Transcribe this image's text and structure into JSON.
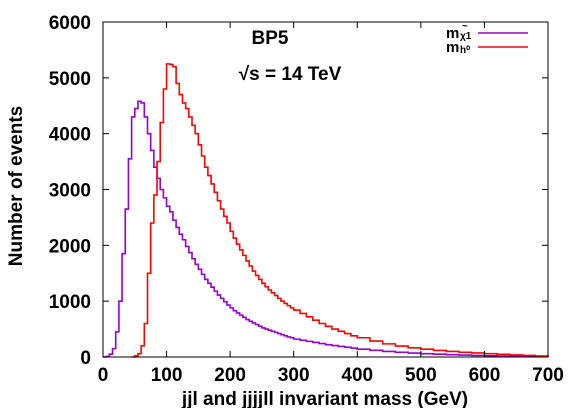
{
  "chart_data": {
    "type": "line",
    "step": true,
    "annotation": {
      "line1": "BP5",
      "line2": "√s = 14 TeV"
    },
    "xlabel": "jjl and jjjjll invariant mass (GeV)",
    "ylabel": "Number of events",
    "xlim": [
      0,
      700
    ],
    "ylim": [
      0,
      6000
    ],
    "xticks": [
      0,
      100,
      200,
      300,
      400,
      500,
      600,
      700
    ],
    "yticks": [
      0,
      1000,
      2000,
      3000,
      4000,
      5000,
      6000
    ],
    "grid": false,
    "legend_position": "top-right",
    "bin_width": 5,
    "series": [
      {
        "legend": {
          "base": "m",
          "accent": "~",
          "sub": "χ1"
        },
        "color": "#9400d3",
        "x": [
          0,
          5,
          10,
          15,
          20,
          25,
          30,
          35,
          40,
          45,
          50,
          55,
          60,
          65,
          70,
          75,
          80,
          85,
          90,
          95,
          100,
          105,
          110,
          115,
          120,
          125,
          130,
          135,
          140,
          145,
          150,
          155,
          160,
          165,
          170,
          175,
          180,
          185,
          190,
          195,
          200,
          205,
          210,
          215,
          220,
          225,
          230,
          235,
          240,
          245,
          250,
          255,
          260,
          265,
          270,
          275,
          280,
          285,
          290,
          295,
          300,
          310,
          320,
          330,
          340,
          350,
          360,
          370,
          380,
          390,
          400,
          420,
          440,
          460,
          480,
          500,
          520,
          540,
          560,
          580,
          600,
          620,
          640,
          660,
          680,
          700
        ],
        "y": [
          0,
          10,
          50,
          150,
          450,
          1000,
          1850,
          2650,
          3550,
          4300,
          4450,
          4580,
          4550,
          4300,
          4000,
          3700,
          3400,
          3200,
          3000,
          2850,
          2700,
          2600,
          2450,
          2320,
          2200,
          2100,
          1980,
          1870,
          1760,
          1660,
          1570,
          1480,
          1390,
          1320,
          1250,
          1180,
          1110,
          1050,
          990,
          930,
          880,
          830,
          790,
          750,
          710,
          670,
          640,
          610,
          580,
          550,
          520,
          500,
          480,
          460,
          440,
          420,
          400,
          380,
          360,
          345,
          320,
          300,
          280,
          260,
          240,
          220,
          205,
          190,
          175,
          160,
          140,
          120,
          100,
          85,
          70,
          60,
          50,
          42,
          35,
          28,
          22,
          17,
          12,
          8,
          5,
          0
        ]
      },
      {
        "legend": {
          "base": "m",
          "accent": "",
          "sub": "h⁰"
        },
        "color": "#ff0000",
        "x": [
          45,
          50,
          55,
          60,
          65,
          70,
          75,
          80,
          85,
          90,
          95,
          100,
          105,
          110,
          115,
          120,
          125,
          130,
          135,
          140,
          145,
          150,
          155,
          160,
          165,
          170,
          175,
          180,
          185,
          190,
          195,
          200,
          205,
          210,
          215,
          220,
          225,
          230,
          235,
          240,
          245,
          250,
          255,
          260,
          265,
          270,
          275,
          280,
          285,
          290,
          295,
          300,
          310,
          320,
          330,
          340,
          350,
          360,
          370,
          380,
          390,
          400,
          420,
          440,
          460,
          480,
          500,
          520,
          540,
          560,
          580,
          600,
          620,
          640,
          660,
          680,
          700
        ],
        "y": [
          0,
          20,
          60,
          200,
          600,
          1500,
          2400,
          2900,
          3500,
          4200,
          4800,
          5250,
          5240,
          5200,
          4900,
          4700,
          4550,
          4450,
          4300,
          4150,
          4000,
          3800,
          3600,
          3400,
          3250,
          3100,
          2950,
          2800,
          2650,
          2520,
          2400,
          2250,
          2130,
          2020,
          1920,
          1820,
          1720,
          1630,
          1540,
          1460,
          1390,
          1320,
          1260,
          1200,
          1150,
          1100,
          1050,
          1000,
          960,
          920,
          880,
          840,
          780,
          720,
          660,
          600,
          550,
          500,
          460,
          420,
          380,
          345,
          285,
          235,
          195,
          165,
          140,
          118,
          100,
          85,
          72,
          60,
          48,
          38,
          28,
          18,
          10
        ]
      }
    ]
  }
}
